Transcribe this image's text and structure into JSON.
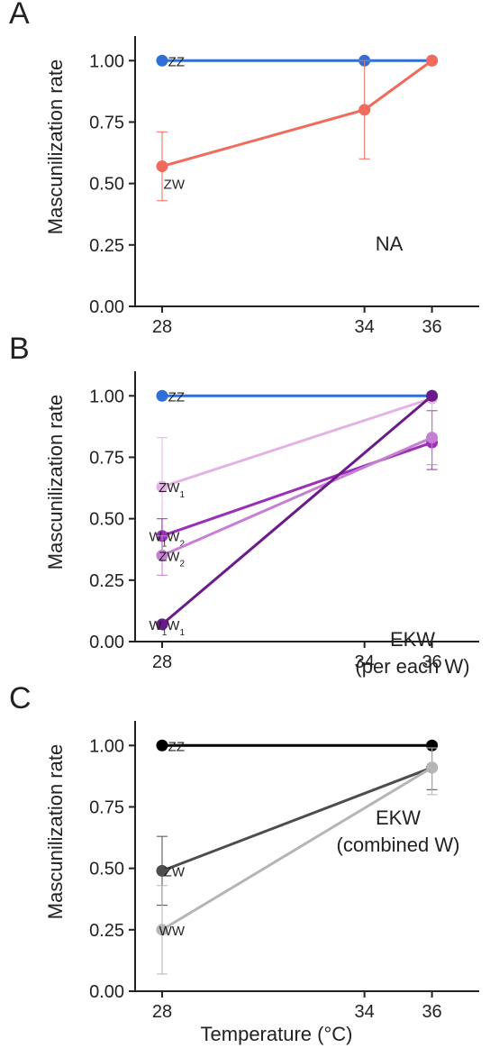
{
  "x_axis_title": "Temperature (°C)",
  "chart_data": [
    {
      "panel": "A",
      "type": "line",
      "ylabel": "Mascunilization rate",
      "x_ticks": [
        28,
        34,
        36
      ],
      "y_ticks": [
        "0.00",
        "0.25",
        "0.50",
        "0.75",
        "1.00"
      ],
      "ylim": [
        0,
        1.1
      ],
      "annotation": [
        "NA"
      ],
      "series": [
        {
          "name": "ZZ",
          "color": "#2f6fd6",
          "x": [
            28,
            34,
            36
          ],
          "y": [
            1.0,
            1.0,
            1.0
          ],
          "err_low": [
            null,
            null,
            null
          ],
          "err_high": [
            null,
            null,
            null
          ]
        },
        {
          "name": "ZW",
          "color": "#f16b5c",
          "x": [
            28,
            34,
            36
          ],
          "y": [
            0.57,
            0.8,
            1.0
          ],
          "err_low": [
            0.43,
            0.6,
            null
          ],
          "err_high": [
            0.71,
            1.0,
            null
          ]
        }
      ]
    },
    {
      "panel": "B",
      "type": "line",
      "ylabel": "Mascunilization rate",
      "x_ticks": [
        28,
        34,
        36
      ],
      "y_ticks": [
        "0.00",
        "0.25",
        "0.50",
        "0.75",
        "1.00"
      ],
      "ylim": [
        0,
        1.1
      ],
      "annotation": [
        "EKW",
        "(per each W)"
      ],
      "series": [
        {
          "name": "ZZ",
          "color": "#2f6fd6",
          "x": [
            28,
            36
          ],
          "y": [
            1.0,
            1.0
          ],
          "err_low": [
            null,
            null
          ],
          "err_high": [
            null,
            null
          ]
        },
        {
          "name": "ZW1",
          "color": "#e3b3e3",
          "x": [
            28,
            36
          ],
          "y": [
            0.63,
            0.99
          ],
          "err_low": [
            0.43,
            0.94
          ],
          "err_high": [
            0.83,
            1.0
          ]
        },
        {
          "name": "W1W2",
          "color": "#9b30b8",
          "x": [
            28,
            36
          ],
          "y": [
            0.43,
            0.81
          ],
          "err_low": [
            0.36,
            0.7
          ],
          "err_high": [
            0.5,
            0.94
          ]
        },
        {
          "name": "ZW2",
          "color": "#c77fd3",
          "x": [
            28,
            36
          ],
          "y": [
            0.35,
            0.83
          ],
          "err_low": [
            0.27,
            0.72
          ],
          "err_high": [
            0.43,
            0.94
          ]
        },
        {
          "name": "W1W1",
          "color": "#6a1b8a",
          "x": [
            28,
            36
          ],
          "y": [
            0.07,
            1.0
          ],
          "err_low": [
            null,
            null
          ],
          "err_high": [
            null,
            null
          ]
        }
      ]
    },
    {
      "panel": "C",
      "type": "line",
      "ylabel": "Mascunilization rate",
      "x_ticks": [
        28,
        34,
        36
      ],
      "y_ticks": [
        "0.00",
        "0.25",
        "0.50",
        "0.75",
        "1.00"
      ],
      "ylim": [
        0,
        1.1
      ],
      "annotation": [
        "EKW",
        "(combined W)"
      ],
      "series": [
        {
          "name": "ZZ",
          "color": "#000000",
          "x": [
            28,
            36
          ],
          "y": [
            1.0,
            1.0
          ],
          "err_low": [
            null,
            0.99
          ],
          "err_high": [
            null,
            1.01
          ]
        },
        {
          "name": "ZW",
          "color": "#4d4d4d",
          "x": [
            28,
            36
          ],
          "y": [
            0.49,
            0.91
          ],
          "err_low": [
            0.35,
            0.82
          ],
          "err_high": [
            0.63,
            0.99
          ]
        },
        {
          "name": "WW",
          "color": "#b5b5b5",
          "x": [
            28,
            36
          ],
          "y": [
            0.25,
            0.91
          ],
          "err_low": [
            0.07,
            0.8
          ],
          "err_high": [
            0.43,
            0.99
          ]
        }
      ]
    }
  ]
}
